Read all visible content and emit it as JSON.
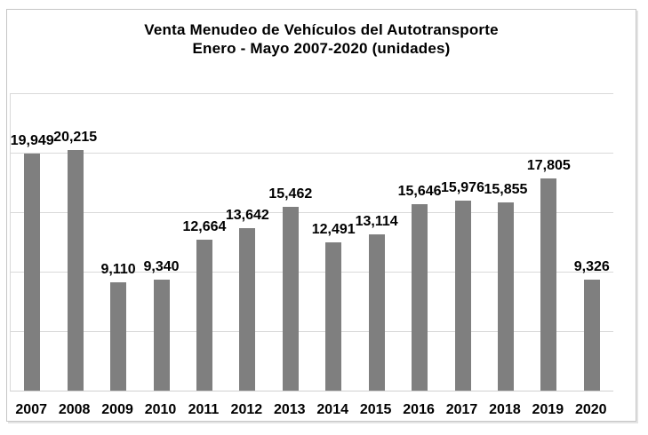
{
  "chart": {
    "title_line1": "Venta Menudeo de Vehículos del Autotransporte",
    "title_line2": "Enero - Mayo 2007-2020 (unidades)"
  },
  "chart_data": {
    "type": "bar",
    "title": "Venta Menudeo de Vehículos del Autotransporte",
    "subtitle": "Enero - Mayo 2007-2020 (unidades)",
    "categories": [
      "2007",
      "2008",
      "2009",
      "2010",
      "2011",
      "2012",
      "2013",
      "2014",
      "2015",
      "2016",
      "2017",
      "2018",
      "2019",
      "2020"
    ],
    "values": [
      19949,
      20215,
      9110,
      9340,
      12664,
      13642,
      15462,
      12491,
      13114,
      15646,
      15976,
      15855,
      17805,
      9326
    ],
    "value_labels": [
      "19,949",
      "20,215",
      "9,110",
      "9,340",
      "12,664",
      "13,642",
      "15,462",
      "12,491",
      "13,114",
      "15,646",
      "15,976",
      "15,855",
      "17,805",
      "9,326"
    ],
    "xlabel": "",
    "ylabel": "",
    "ylim": [
      0,
      25000
    ],
    "gridline_interval": 5000,
    "grid": true,
    "legend": false,
    "y_tick_labels_visible": false,
    "bar_color": "#7f7f7f",
    "gridline_color": "#d9d9d9",
    "axis_color": "#d0d0d0",
    "text_color": "#000000",
    "background_color": "#ffffff"
  }
}
